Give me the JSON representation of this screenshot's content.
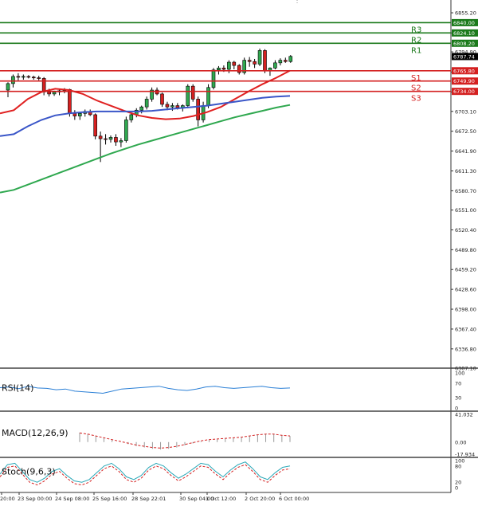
{
  "chart_data": {
    "type": "candlestick",
    "price_axis": {
      "ticks": [
        "6855.20",
        "6824.10",
        "6794.90",
        "6763.80",
        "6733.00",
        "6703.10",
        "6672.50",
        "6641.90",
        "6611.30",
        "6580.70",
        "6551.00",
        "6520.40",
        "6489.80",
        "6459.20",
        "6428.60",
        "6398.00",
        "6367.40",
        "6336.80",
        "6307.10"
      ],
      "ylim": [
        6307.1,
        6870
      ]
    },
    "time_axis": {
      "labels": [
        "20:00",
        "23 Sep 00:00",
        "24 Sep 08:00",
        "25 Sep 16:00",
        "28 Sep 22:01",
        "30 Sep 04:00",
        "1 Oct 12:00",
        "2 Oct 20:00",
        "6 Oct 00:00"
      ]
    },
    "current_price": "6787.74",
    "levels": [
      {
        "name": "R3",
        "value": "6840.00",
        "color": "#1b7a1b"
      },
      {
        "name": "R2",
        "value": "6824.10",
        "color": "#1b7a1b"
      },
      {
        "name": "R1",
        "value": "6808.20",
        "color": "#1b7a1b"
      },
      {
        "name": "S1",
        "value": "6765.80",
        "color": "#d42020"
      },
      {
        "name": "S2",
        "value": "6749.90",
        "color": "#d42020"
      },
      {
        "name": "S3",
        "value": "6734.00",
        "color": "#d42020"
      }
    ],
    "candles": [
      [
        6736,
        6748,
        6725,
        6746
      ],
      [
        6746,
        6760,
        6740,
        6757
      ],
      [
        6757,
        6762,
        6750,
        6756
      ],
      [
        6756,
        6760,
        6752,
        6757
      ],
      [
        6757,
        6759,
        6754,
        6756
      ],
      [
        6756,
        6758,
        6752,
        6755
      ],
      [
        6755,
        6758,
        6751,
        6754
      ],
      [
        6754,
        6756,
        6728,
        6733
      ],
      [
        6733,
        6738,
        6726,
        6730
      ],
      [
        6730,
        6735,
        6727,
        6733
      ],
      [
        6733,
        6738,
        6728,
        6735
      ],
      [
        6735,
        6739,
        6731,
        6737
      ],
      [
        6737,
        6738,
        6695,
        6700
      ],
      [
        6700,
        6705,
        6690,
        6696
      ],
      [
        6696,
        6702,
        6690,
        6700
      ],
      [
        6700,
        6706,
        6695,
        6703
      ],
      [
        6703,
        6706,
        6696,
        6698
      ],
      [
        6698,
        6700,
        6660,
        6665
      ],
      [
        6665,
        6672,
        6625,
        6661
      ],
      [
        6661,
        6668,
        6652,
        6660
      ],
      [
        6660,
        6666,
        6655,
        6663
      ],
      [
        6663,
        6668,
        6650,
        6656
      ],
      [
        6656,
        6662,
        6648,
        6658
      ],
      [
        6658,
        6695,
        6655,
        6690
      ],
      [
        6690,
        6700,
        6686,
        6698
      ],
      [
        6698,
        6708,
        6694,
        6705
      ],
      [
        6705,
        6712,
        6700,
        6710
      ],
      [
        6710,
        6726,
        6706,
        6722
      ],
      [
        6722,
        6740,
        6718,
        6736
      ],
      [
        6736,
        6740,
        6728,
        6730
      ],
      [
        6730,
        6732,
        6710,
        6714
      ],
      [
        6714,
        6718,
        6705,
        6710
      ],
      [
        6710,
        6716,
        6704,
        6712
      ],
      [
        6712,
        6716,
        6706,
        6709
      ],
      [
        6709,
        6714,
        6703,
        6712
      ],
      [
        6712,
        6745,
        6708,
        6742
      ],
      [
        6742,
        6745,
        6718,
        6722
      ],
      [
        6722,
        6726,
        6680,
        6690
      ],
      [
        6690,
        6718,
        6686,
        6712
      ],
      [
        6712,
        6745,
        6708,
        6740
      ],
      [
        6740,
        6770,
        6737,
        6767
      ],
      [
        6767,
        6773,
        6760,
        6770
      ],
      [
        6770,
        6774,
        6764,
        6768
      ],
      [
        6768,
        6782,
        6762,
        6779
      ],
      [
        6779,
        6781,
        6768,
        6774
      ],
      [
        6774,
        6776,
        6760,
        6763
      ],
      [
        6763,
        6786,
        6760,
        6782
      ],
      [
        6782,
        6787,
        6772,
        6780
      ],
      [
        6780,
        6784,
        6770,
        6776
      ],
      [
        6776,
        6800,
        6773,
        6797
      ],
      [
        6797,
        6799,
        6762,
        6766
      ],
      [
        6766,
        6771,
        6758,
        6770
      ],
      [
        6770,
        6782,
        6768,
        6778
      ],
      [
        6778,
        6785,
        6774,
        6782
      ],
      [
        6782,
        6786,
        6778,
        6780
      ],
      [
        6780,
        6790,
        6778,
        6788
      ]
    ],
    "moving_averages": [
      {
        "color": "#e02020",
        "start": 6700,
        "values": [
          6705,
          6722,
          6733,
          6738,
          6736,
          6730,
          6720,
          6712,
          6704,
          6697,
          6693,
          6691,
          6692,
          6696,
          6702,
          6710,
          6722,
          6734,
          6745,
          6755,
          6766
        ]
      },
      {
        "color": "#3a56c8",
        "start": 6665,
        "values": [
          6668,
          6680,
          6690,
          6697,
          6700,
          6702,
          6703,
          6703,
          6703,
          6703,
          6704,
          6706,
          6708,
          6710,
          6712,
          6715,
          6718,
          6721,
          6724,
          6726,
          6727
        ]
      },
      {
        "color": "#2fa84f",
        "start": 6578,
        "values": [
          6582,
          6590,
          6598,
          6606,
          6614,
          6622,
          6630,
          6638,
          6645,
          6652,
          6658,
          6664,
          6670,
          6676,
          6682,
          6688,
          6694,
          6699,
          6704,
          6709,
          6713
        ]
      }
    ],
    "indicators": {
      "rsi": {
        "label": "RSI(14)",
        "ticks": [
          "100",
          "70",
          "30",
          "0"
        ]
      },
      "macd": {
        "label": "MACD(12,26,9)",
        "ticks": [
          "41.032",
          "0.00",
          "-17.934"
        ]
      },
      "stoch": {
        "label": "Stoch(9,6,3)",
        "ticks": [
          "100",
          "80",
          "20",
          "0"
        ]
      }
    }
  }
}
